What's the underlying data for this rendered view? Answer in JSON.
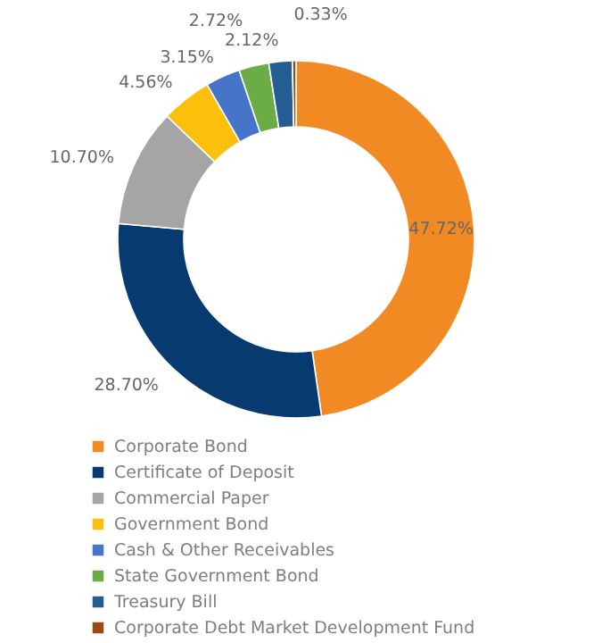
{
  "chart_data": {
    "type": "donut",
    "categories": [
      "Corporate Bond",
      "Certificate of Deposit",
      "Commercial Paper",
      "Government Bond",
      "Cash & Other Receivables",
      "State Government Bond",
      "Treasury Bill",
      "Corporate Debt Market Development Fund"
    ],
    "values": [
      47.72,
      28.7,
      10.7,
      4.56,
      3.15,
      2.72,
      2.12,
      0.33
    ],
    "colors": [
      "#f28a24",
      "#073a6e",
      "#a5a5a5",
      "#fbbf0c",
      "#4674c8",
      "#6aac46",
      "#245d92",
      "#9c4a14"
    ],
    "value_labels": [
      "47.72%",
      "28.70%",
      "10.70%",
      "4.56%",
      "3.15%",
      "2.72%",
      "2.12%",
      "0.33%"
    ],
    "legend": "bottom"
  }
}
